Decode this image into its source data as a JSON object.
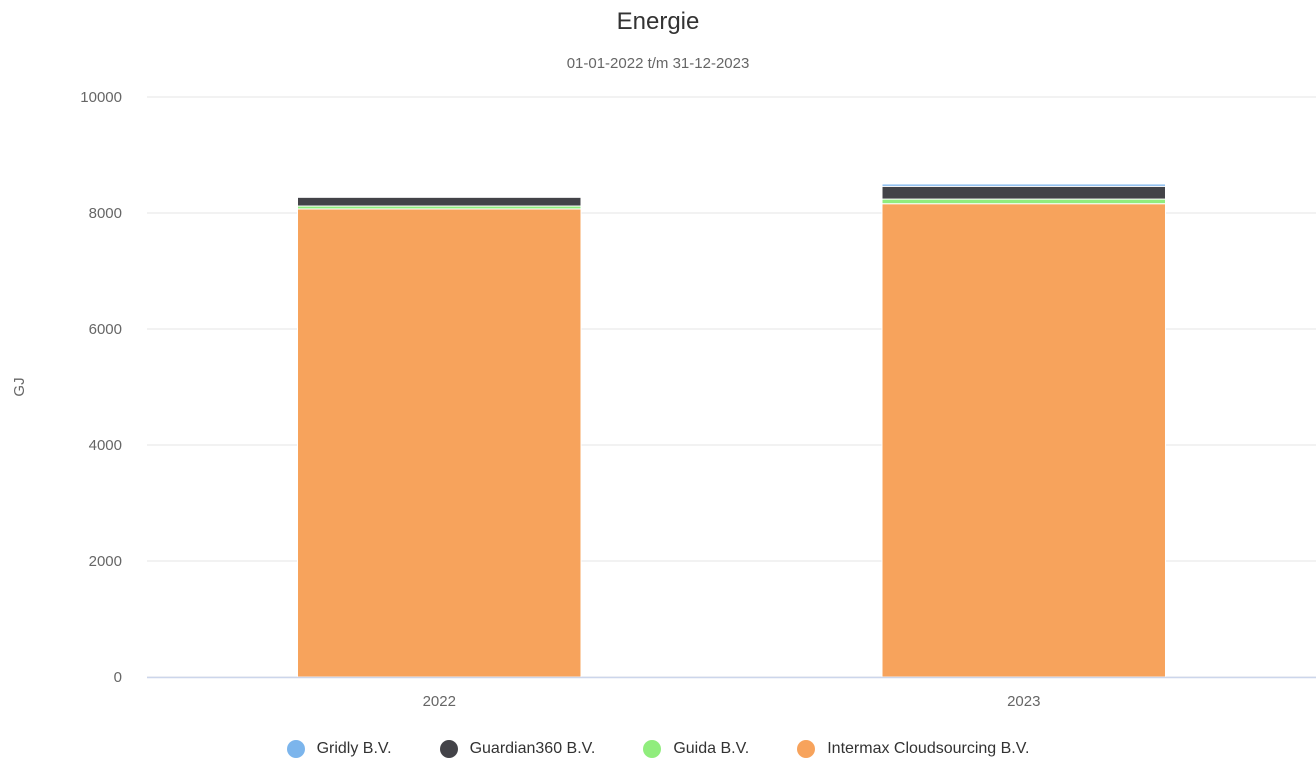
{
  "chart_data": {
    "type": "bar",
    "stacked": true,
    "title": "Energie",
    "subtitle": "01-01-2022 t/m 31-12-2023",
    "xlabel": "",
    "ylabel": "GJ",
    "categories": [
      "2022",
      "2023"
    ],
    "ylim": [
      0,
      10000
    ],
    "yticks": [
      "0",
      "2000",
      "4000",
      "6000",
      "8000",
      "10000"
    ],
    "grid": true,
    "legend_position": "bottom",
    "series": [
      {
        "name": "Intermax Cloudsourcing B.V.",
        "color": "#F7A35C",
        "values": [
          8070,
          8160
        ]
      },
      {
        "name": "Guida B.V.",
        "color": "#90ED7D",
        "values": [
          50,
          80
        ]
      },
      {
        "name": "Guardian360 B.V.",
        "color": "#434348",
        "values": [
          150,
          220
        ]
      },
      {
        "name": "Gridly B.V.",
        "color": "#7CB5EC",
        "values": [
          0,
          40
        ]
      }
    ],
    "legend_order": [
      "Gridly B.V.",
      "Guardian360 B.V.",
      "Guida B.V.",
      "Intermax Cloudsourcing B.V."
    ]
  }
}
